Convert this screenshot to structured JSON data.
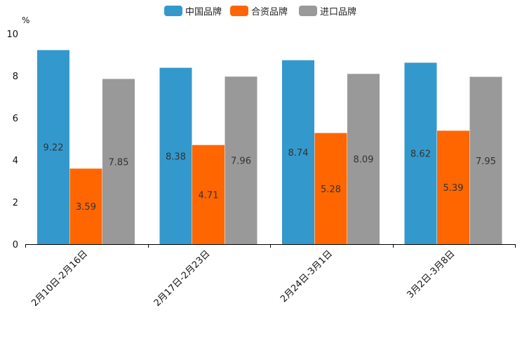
{
  "chart_data": {
    "type": "bar",
    "title": "",
    "xlabel": "",
    "ylabel": "%",
    "ylim": [
      0,
      10
    ],
    "yticks": [
      0,
      2,
      4,
      6,
      8,
      10
    ],
    "categories": [
      "2月10日-2月16日",
      "2月17日-2月23日",
      "2月24日-3月1日",
      "3月2日-3月8日"
    ],
    "series": [
      {
        "name": "中国品牌",
        "color": "#3399cc",
        "values": [
          9.22,
          8.38,
          8.74,
          8.62
        ]
      },
      {
        "name": "合资品牌",
        "color": "#ff6600",
        "values": [
          3.59,
          4.71,
          5.28,
          5.39
        ]
      },
      {
        "name": "进口品牌",
        "color": "#999999",
        "values": [
          7.85,
          7.96,
          8.09,
          7.95
        ]
      }
    ],
    "legend_position": "top-center",
    "grid": false
  }
}
